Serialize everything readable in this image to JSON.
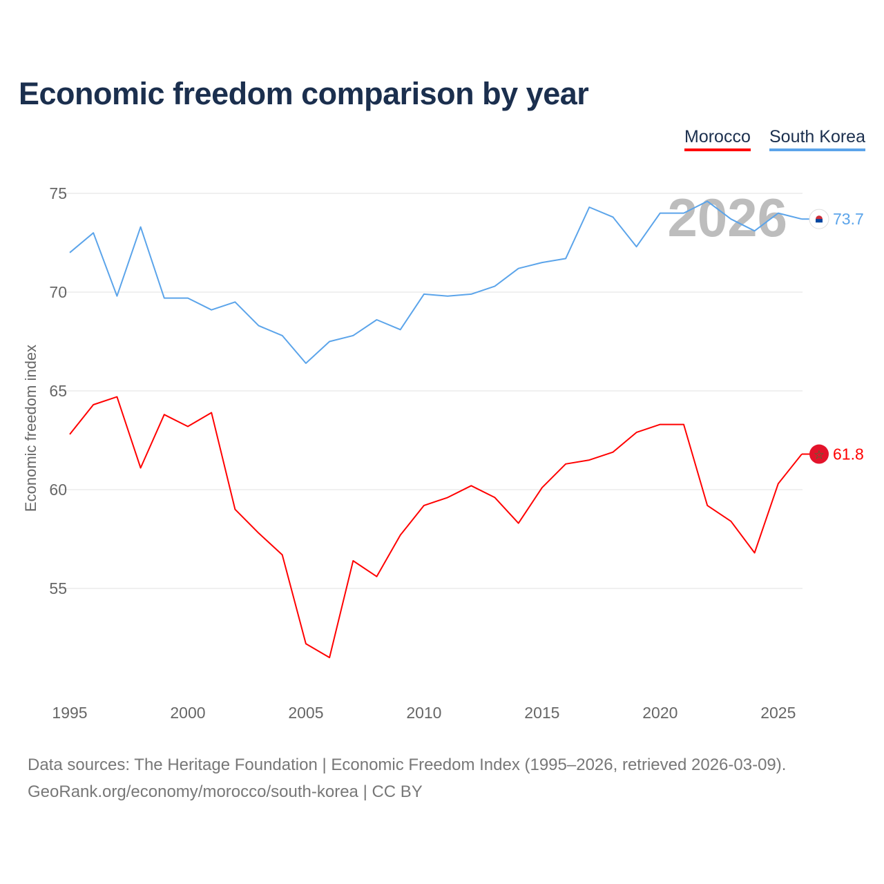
{
  "title": "Economic freedom comparison by year",
  "legend": {
    "morocco": "Morocco",
    "south_korea": "South Korea"
  },
  "year_watermark": "2026",
  "footer": {
    "line1": "Data sources: The Heritage Foundation | Economic Freedom Index (1995–2026, retrieved 2026-03-09).",
    "line2": "GeoRank.org/economy/morocco/south-korea | CC BY"
  },
  "chart_data": {
    "type": "line",
    "title": "Economic freedom comparison by year",
    "xlabel": "",
    "ylabel": "Economic freedom index",
    "x": [
      1995,
      1996,
      1997,
      1998,
      1999,
      2000,
      2001,
      2002,
      2003,
      2004,
      2005,
      2006,
      2007,
      2008,
      2009,
      2010,
      2011,
      2012,
      2013,
      2014,
      2015,
      2016,
      2017,
      2018,
      2019,
      2020,
      2021,
      2022,
      2023,
      2024,
      2025,
      2026
    ],
    "xticks": [
      1995,
      2000,
      2005,
      2010,
      2015,
      2020,
      2025
    ],
    "yticks": [
      55,
      60,
      65,
      70,
      75
    ],
    "xlim": [
      1995,
      2026
    ],
    "ylim": [
      49.8,
      76.4
    ],
    "grid": true,
    "legend_position": "top-right",
    "series": [
      {
        "name": "Morocco",
        "color": "#ff0000",
        "end_label": "61.8",
        "values": [
          62.8,
          64.3,
          64.7,
          61.1,
          63.8,
          63.2,
          63.9,
          59.0,
          57.8,
          56.7,
          52.2,
          51.5,
          56.4,
          55.6,
          57.7,
          59.2,
          59.6,
          60.2,
          59.6,
          58.3,
          60.1,
          61.3,
          61.5,
          61.9,
          62.9,
          63.3,
          63.3,
          59.2,
          58.4,
          56.8,
          60.3,
          61.8
        ]
      },
      {
        "name": "South Korea",
        "color": "#5ba4ea",
        "end_label": "73.7",
        "values": [
          72.0,
          73.0,
          69.8,
          73.3,
          69.7,
          69.7,
          69.1,
          69.5,
          68.3,
          67.8,
          66.4,
          67.5,
          67.8,
          68.6,
          68.1,
          69.9,
          69.8,
          69.9,
          70.3,
          71.2,
          71.5,
          71.7,
          74.3,
          73.8,
          72.3,
          74.0,
          74.0,
          74.6,
          73.7,
          73.1,
          74.0,
          73.7
        ]
      }
    ]
  }
}
